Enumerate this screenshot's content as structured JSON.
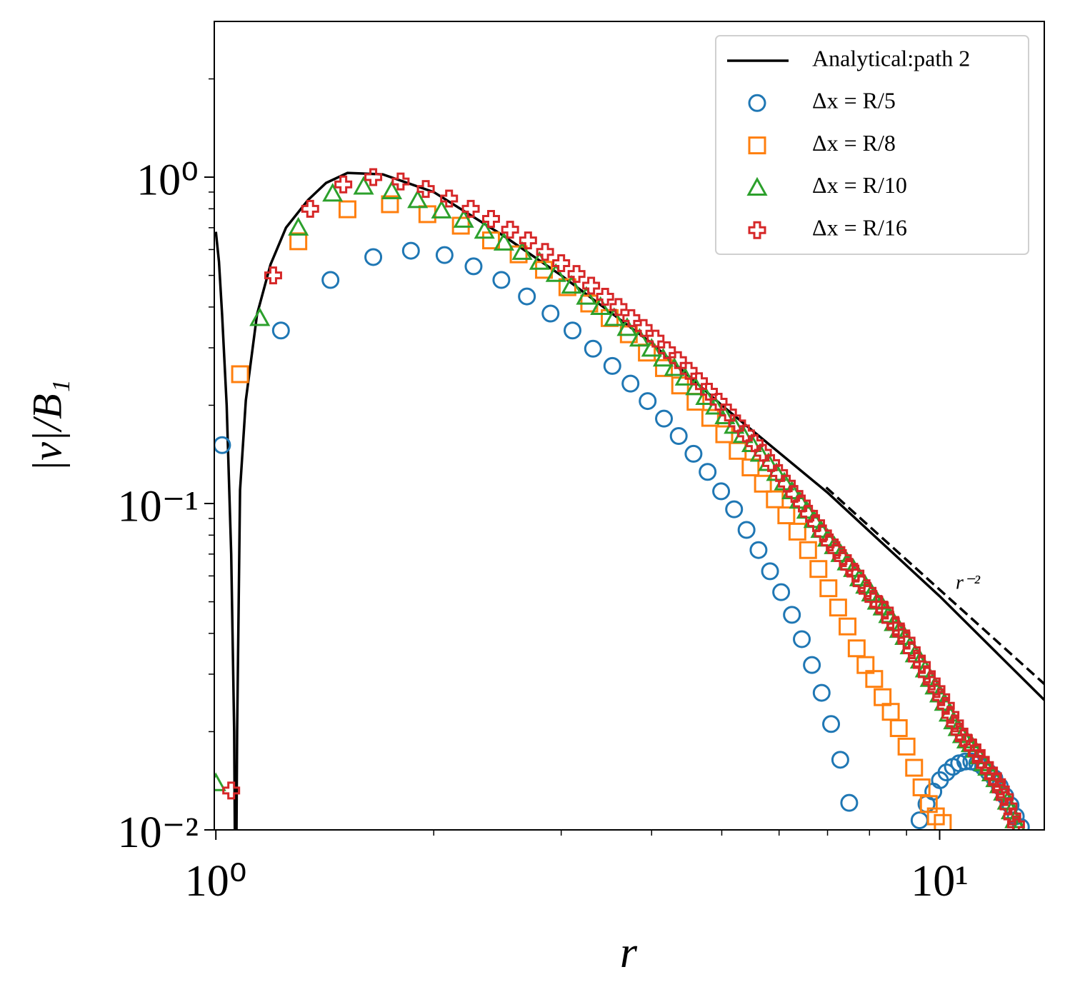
{
  "chart_data": {
    "type": "scatter",
    "xlabel": "r",
    "ylabel": "|v|/B₁",
    "xscale": "log",
    "yscale": "log",
    "xlim": [
      0.995,
      13.95
    ],
    "ylim": [
      0.01,
      3.0
    ],
    "xticks": [
      {
        "value": 1,
        "label": "10⁰"
      },
      {
        "value": 10,
        "label": "10¹"
      }
    ],
    "yticks": [
      {
        "value": 0.01,
        "label": "10⁻²"
      },
      {
        "value": 0.1,
        "label": "10⁻¹"
      },
      {
        "value": 1,
        "label": "10⁰"
      }
    ],
    "xminorticks": [
      2,
      3,
      4,
      5,
      6,
      7,
      8,
      9
    ],
    "yminorticks": [
      0.02,
      0.03,
      0.04,
      0.05,
      0.06,
      0.07,
      0.08,
      0.09,
      0.2,
      0.3,
      0.4,
      0.5,
      0.6,
      0.7,
      0.8,
      0.9,
      2
    ],
    "legend": "upper right",
    "series": [
      {
        "name": "Analytical:path 2",
        "type": "line",
        "color": "#000000",
        "x": [
          1.0,
          1.01,
          1.02,
          1.035,
          1.05,
          1.06,
          1.065,
          1.07,
          1.08,
          1.1,
          1.14,
          1.19,
          1.25,
          1.34,
          1.42,
          1.52,
          1.7,
          2.0,
          2.5,
          3.0,
          4.0,
          5.0,
          7.0,
          10.0,
          13.95
        ],
        "values": [
          0.68,
          0.55,
          0.38,
          0.2,
          0.07,
          0.02,
          0.004,
          0.02,
          0.11,
          0.207,
          0.38,
          0.54,
          0.7,
          0.85,
          0.96,
          1.03,
          1.02,
          0.9,
          0.66,
          0.5,
          0.31,
          0.2,
          0.108,
          0.052,
          0.025
        ]
      },
      {
        "name": "Δx = R/5",
        "marker": "circle",
        "color": "#1f77b4",
        "x": [
          1.02,
          1.23,
          1.44,
          1.65,
          1.86,
          2.07,
          2.27,
          2.48,
          2.69,
          2.9,
          3.11,
          3.32,
          3.53,
          3.74,
          3.95,
          4.16,
          4.36,
          4.57,
          4.78,
          4.99,
          5.2,
          5.41,
          5.62,
          5.83,
          6.04,
          6.25,
          6.45,
          6.66,
          6.87,
          7.08,
          7.29,
          7.5,
          9.38,
          9.59,
          9.8,
          10.01,
          10.22,
          10.43,
          10.64,
          10.85,
          11.06,
          11.27,
          11.48,
          11.69,
          11.9,
          12.11,
          12.32,
          12.53,
          12.74,
          12.95
        ],
        "values": [
          0.151,
          0.339,
          0.484,
          0.569,
          0.595,
          0.577,
          0.533,
          0.484,
          0.431,
          0.382,
          0.339,
          0.298,
          0.264,
          0.233,
          0.206,
          0.182,
          0.161,
          0.142,
          0.125,
          0.109,
          0.096,
          0.083,
          0.072,
          0.062,
          0.0535,
          0.0456,
          0.0384,
          0.032,
          0.0263,
          0.0211,
          0.0164,
          0.0121,
          0.0107,
          0.012,
          0.0131,
          0.0142,
          0.015,
          0.0156,
          0.016,
          0.0162,
          0.0162,
          0.016,
          0.0156,
          0.015,
          0.0144,
          0.0136,
          0.0127,
          0.0119,
          0.011,
          0.0102
        ]
      },
      {
        "name": "Δx = R/8",
        "marker": "square",
        "color": "#ff7f0e",
        "x": [
          1.08,
          1.3,
          1.52,
          1.74,
          1.96,
          2.18,
          2.4,
          2.62,
          2.84,
          3.06,
          3.28,
          3.5,
          3.72,
          3.94,
          4.16,
          4.38,
          4.6,
          4.82,
          5.04,
          5.26,
          5.48,
          5.7,
          5.92,
          6.14,
          6.36,
          6.58,
          6.8,
          7.02,
          7.24,
          7.46,
          7.68,
          7.9,
          8.12,
          8.34,
          8.56,
          8.78,
          9.0,
          9.22,
          9.44,
          9.66,
          9.88,
          10.1
        ],
        "values": [
          0.249,
          0.636,
          0.797,
          0.826,
          0.77,
          0.71,
          0.64,
          0.58,
          0.52,
          0.46,
          0.41,
          0.37,
          0.33,
          0.29,
          0.26,
          0.23,
          0.205,
          0.183,
          0.163,
          0.145,
          0.129,
          0.115,
          0.103,
          0.092,
          0.082,
          0.072,
          0.063,
          0.055,
          0.048,
          0.042,
          0.036,
          0.032,
          0.029,
          0.0255,
          0.023,
          0.0205,
          0.018,
          0.0155,
          0.0135,
          0.012,
          0.011,
          0.0105
        ]
      },
      {
        "name": "Δx = R/10",
        "marker": "triangle",
        "color": "#2ca02c",
        "x": [
          1.0,
          1.15,
          1.3,
          1.45,
          1.6,
          1.75,
          1.9,
          2.05,
          2.2,
          2.35,
          2.5,
          2.65,
          2.8,
          2.95,
          3.1,
          3.25,
          3.4,
          3.55,
          3.7,
          3.85,
          4.0,
          4.15,
          4.3,
          4.45,
          4.6,
          4.75,
          4.9,
          5.05,
          5.2,
          5.35,
          5.5,
          5.65,
          5.8,
          5.95,
          6.1,
          6.25,
          6.4,
          6.55,
          6.7,
          6.85,
          7.0,
          7.15,
          7.3,
          7.45,
          7.6,
          7.75,
          7.9,
          8.05,
          8.2,
          8.35,
          8.5,
          8.65,
          8.8,
          8.95,
          9.1,
          9.25,
          9.4,
          9.55,
          9.7,
          9.85,
          10.0,
          10.15,
          10.3,
          10.45,
          10.6,
          10.75,
          10.9,
          11.05,
          11.2,
          11.35,
          11.5,
          11.65,
          11.8,
          11.95,
          12.1,
          12.25,
          12.4,
          12.55,
          12.7,
          12.85
        ],
        "values": [
          0.0139,
          0.37,
          0.7,
          0.89,
          0.935,
          0.905,
          0.85,
          0.79,
          0.74,
          0.685,
          0.63,
          0.59,
          0.55,
          0.505,
          0.465,
          0.43,
          0.4,
          0.37,
          0.345,
          0.32,
          0.298,
          0.278,
          0.26,
          0.243,
          0.227,
          0.212,
          0.198,
          0.185,
          0.173,
          0.162,
          0.152,
          0.142,
          0.133,
          0.124,
          0.116,
          0.109,
          0.102,
          0.095,
          0.089,
          0.083,
          0.078,
          0.074,
          0.07,
          0.066,
          0.063,
          0.059,
          0.056,
          0.053,
          0.05,
          0.048,
          0.0455,
          0.043,
          0.041,
          0.039,
          0.0365,
          0.0345,
          0.033,
          0.031,
          0.029,
          0.0275,
          0.026,
          0.0245,
          0.0227,
          0.0215,
          0.0205,
          0.0195,
          0.0188,
          0.0183,
          0.0176,
          0.0168,
          0.016,
          0.0155,
          0.0149,
          0.0143,
          0.0137,
          0.013,
          0.0122,
          0.0114,
          0.0107,
          0.0101
        ]
      },
      {
        "name": "Δx = R/16",
        "marker": "plus",
        "color": "#d62728",
        "x": [
          1.05,
          1.2,
          1.35,
          1.5,
          1.65,
          1.8,
          1.95,
          2.1,
          2.25,
          2.4,
          2.55,
          2.7,
          2.85,
          3.0,
          3.15,
          3.3,
          3.45,
          3.6,
          3.75,
          3.9,
          4.05,
          4.2,
          4.35,
          4.5,
          4.65,
          4.8,
          4.95,
          5.1,
          5.25,
          5.4,
          5.55,
          5.7,
          5.85,
          6.0,
          6.15,
          6.3,
          6.45,
          6.6,
          6.75,
          6.9,
          7.05,
          7.2,
          7.35,
          7.5,
          7.65,
          7.8,
          7.95,
          8.1,
          8.25,
          8.4,
          8.55,
          8.7,
          8.85,
          9.0,
          9.15,
          9.3,
          9.45,
          9.6,
          9.75,
          9.9,
          10.05,
          10.2,
          10.35,
          10.5,
          10.65,
          10.8,
          10.95,
          11.1,
          11.25,
          11.4,
          11.55,
          11.7,
          11.85,
          12.0,
          12.15,
          12.3,
          12.45,
          12.6,
          12.75
        ],
        "values": [
          0.0132,
          0.5,
          0.8,
          0.95,
          1.0,
          0.97,
          0.92,
          0.86,
          0.8,
          0.745,
          0.69,
          0.64,
          0.59,
          0.545,
          0.505,
          0.465,
          0.43,
          0.4,
          0.37,
          0.345,
          0.32,
          0.295,
          0.275,
          0.255,
          0.237,
          0.22,
          0.205,
          0.19,
          0.176,
          0.164,
          0.153,
          0.143,
          0.133,
          0.124,
          0.115,
          0.107,
          0.1,
          0.093,
          0.087,
          0.081,
          0.076,
          0.072,
          0.068,
          0.064,
          0.061,
          0.057,
          0.054,
          0.051,
          0.049,
          0.047,
          0.044,
          0.042,
          0.04,
          0.038,
          0.0355,
          0.0335,
          0.032,
          0.03,
          0.0285,
          0.027,
          0.0255,
          0.024,
          0.0225,
          0.0212,
          0.02,
          0.0191,
          0.0185,
          0.0179,
          0.0172,
          0.0164,
          0.0158,
          0.0152,
          0.0146,
          0.014,
          0.0133,
          0.0126,
          0.0118,
          0.011,
          0.0104
        ]
      }
    ],
    "reference": {
      "label": "r⁻²",
      "color": "#000000",
      "x": [
        6.97,
        13.95
      ],
      "values": [
        0.112,
        0.028
      ]
    }
  }
}
